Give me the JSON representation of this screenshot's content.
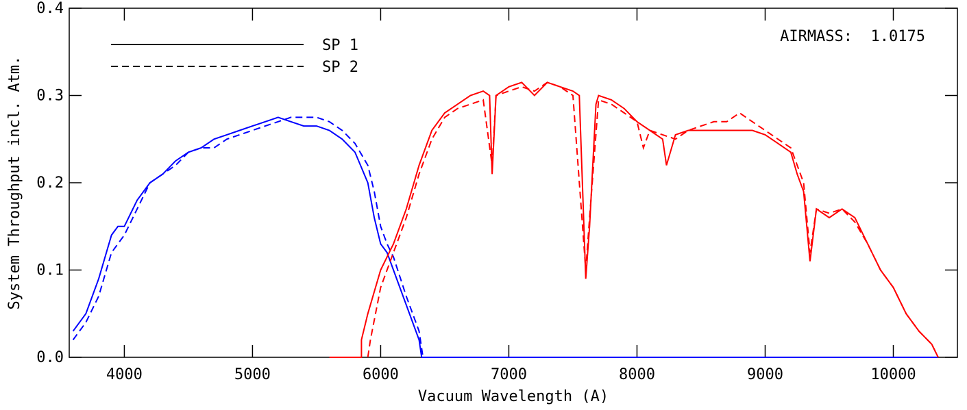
{
  "chart_data": {
    "type": "line",
    "title": null,
    "xlabel": "Vacuum Wavelength (A)",
    "ylabel": "System Throughput incl. Atm.",
    "annotation": "AIRMASS:  1.0175",
    "xlim": [
      3570,
      10500
    ],
    "ylim": [
      0,
      0.4
    ],
    "xticks": [
      4000,
      5000,
      6000,
      7000,
      8000,
      9000,
      10000
    ],
    "yticks": [
      {
        "value": 0,
        "label": "0.0"
      },
      0.1,
      0.2,
      0.3,
      0.4
    ],
    "legend": "upper left",
    "series": [
      {
        "name": "SP 1",
        "color": "#0000ff",
        "dash": "solid",
        "x": [
          3600,
          3700,
          3800,
          3900,
          3950,
          4000,
          4050,
          4100,
          4200,
          4300,
          4400,
          4500,
          4600,
          4700,
          4800,
          4900,
          5000,
          5100,
          5200,
          5300,
          5400,
          5500,
          5600,
          5700,
          5800,
          5900,
          5950,
          6000,
          6050,
          6100,
          6200,
          6300,
          6320,
          7000,
          8000,
          9000,
          10350
        ],
        "values": [
          0.03,
          0.05,
          0.09,
          0.14,
          0.15,
          0.15,
          0.165,
          0.18,
          0.2,
          0.21,
          0.225,
          0.235,
          0.24,
          0.25,
          0.255,
          0.26,
          0.265,
          0.27,
          0.275,
          0.27,
          0.265,
          0.265,
          0.26,
          0.25,
          0.235,
          0.2,
          0.16,
          0.13,
          0.12,
          0.1,
          0.06,
          0.02,
          0,
          0,
          0,
          0,
          0
        ]
      },
      {
        "name": "SP 2",
        "color": "#0000ff",
        "dash": "dashed",
        "x": [
          3600,
          3700,
          3800,
          3900,
          4000,
          4100,
          4200,
          4300,
          4400,
          4500,
          4600,
          4700,
          4800,
          4900,
          5000,
          5100,
          5200,
          5300,
          5400,
          5500,
          5600,
          5700,
          5800,
          5900,
          5950,
          6000,
          6050,
          6100,
          6200,
          6300,
          6330,
          10350
        ],
        "values": [
          0.02,
          0.04,
          0.07,
          0.12,
          0.14,
          0.17,
          0.2,
          0.21,
          0.22,
          0.235,
          0.24,
          0.24,
          0.25,
          0.255,
          0.26,
          0.265,
          0.27,
          0.275,
          0.275,
          0.275,
          0.27,
          0.26,
          0.245,
          0.22,
          0.19,
          0.15,
          0.13,
          0.115,
          0.07,
          0.03,
          0,
          0
        ]
      },
      {
        "name": "SP 1",
        "color": "#ff0000",
        "dash": "solid",
        "x": [
          5600,
          5850,
          5850,
          5900,
          6000,
          6100,
          6200,
          6300,
          6400,
          6500,
          6600,
          6700,
          6800,
          6850,
          6870,
          6900,
          7000,
          7100,
          7200,
          7300,
          7400,
          7500,
          7550,
          7600,
          7630,
          7680,
          7700,
          7800,
          7900,
          8000,
          8100,
          8200,
          8230,
          8300,
          8400,
          8500,
          8600,
          8700,
          8800,
          8900,
          9000,
          9100,
          9200,
          9250,
          9300,
          9350,
          9400,
          9500,
          9600,
          9700,
          9800,
          9900,
          10000,
          10100,
          10200,
          10300,
          10350
        ],
        "values": [
          0,
          0,
          0.02,
          0.05,
          0.1,
          0.13,
          0.17,
          0.22,
          0.26,
          0.28,
          0.29,
          0.3,
          0.305,
          0.3,
          0.21,
          0.3,
          0.31,
          0.315,
          0.3,
          0.315,
          0.31,
          0.305,
          0.3,
          0.09,
          0.15,
          0.29,
          0.3,
          0.295,
          0.285,
          0.27,
          0.26,
          0.25,
          0.22,
          0.255,
          0.26,
          0.26,
          0.26,
          0.26,
          0.26,
          0.26,
          0.255,
          0.245,
          0.235,
          0.21,
          0.19,
          0.11,
          0.17,
          0.16,
          0.17,
          0.16,
          0.13,
          0.1,
          0.08,
          0.05,
          0.03,
          0.015,
          0
        ]
      },
      {
        "name": "SP 2",
        "color": "#ff0000",
        "dash": "dashed",
        "x": [
          5900,
          5920,
          6000,
          6100,
          6200,
          6300,
          6400,
          6500,
          6600,
          6700,
          6800,
          6870,
          6900,
          7000,
          7100,
          7200,
          7300,
          7400,
          7500,
          7600,
          7630,
          7700,
          7800,
          7900,
          8000,
          8050,
          8100,
          8200,
          8300,
          8400,
          8500,
          8600,
          8700,
          8800,
          8900,
          9000,
          9100,
          9200,
          9300,
          9350,
          9400,
          9500,
          9600,
          9700,
          9800,
          9900,
          10000,
          10100,
          10200,
          10300,
          10350
        ],
        "values": [
          0,
          0.02,
          0.08,
          0.12,
          0.16,
          0.21,
          0.25,
          0.275,
          0.285,
          0.29,
          0.295,
          0.22,
          0.3,
          0.305,
          0.31,
          0.305,
          0.315,
          0.31,
          0.3,
          0.1,
          0.16,
          0.295,
          0.29,
          0.28,
          0.27,
          0.24,
          0.26,
          0.255,
          0.25,
          0.26,
          0.265,
          0.27,
          0.27,
          0.28,
          0.27,
          0.26,
          0.25,
          0.24,
          0.2,
          0.12,
          0.17,
          0.165,
          0.17,
          0.155,
          0.13,
          0.1,
          0.08,
          0.05,
          0.03,
          0.015,
          0
        ]
      }
    ]
  }
}
